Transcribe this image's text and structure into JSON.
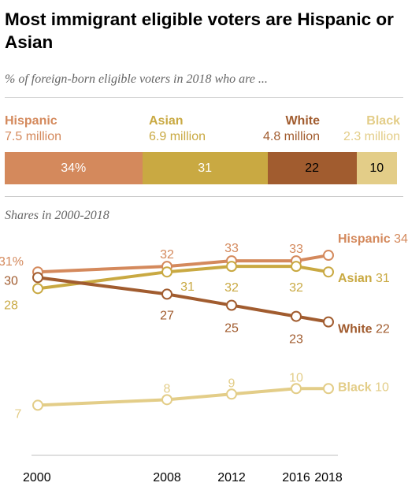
{
  "title": "Most immigrant eligible voters are Hispanic or Asian",
  "subtitle": "% of foreign-born eligible voters in 2018 who are ...",
  "bar_groups": [
    {
      "name": "Hispanic",
      "value_label": "7.5 million",
      "share": 34,
      "share_label": "34%",
      "color": "#d4895c",
      "text_color": "#ffffff",
      "label_color": "#d4895c"
    },
    {
      "name": "Asian",
      "value_label": "6.9 million",
      "share": 31,
      "share_label": "31",
      "color": "#c9a942",
      "text_color": "#ffffff",
      "label_color": "#c9a942"
    },
    {
      "name": "White",
      "value_label": "4.8 million",
      "share": 22,
      "share_label": "22",
      "color": "#a15c2f",
      "text_color": "#000000",
      "label_color": "#a15c2f"
    },
    {
      "name": "Black",
      "value_label": "2.3 million",
      "share": 10,
      "share_label": "10",
      "color": "#e3cd88",
      "text_color": "#000000",
      "label_color": "#e3cd88"
    }
  ],
  "shares_heading": "Shares in 2000-2018",
  "chart_data": {
    "type": "line",
    "x": [
      2000,
      2008,
      2012,
      2016,
      2018
    ],
    "x_tick_labels": [
      "2000",
      "2008",
      "2012",
      "2016",
      "2018"
    ],
    "xlim": [
      2000,
      2018
    ],
    "ylim": [
      5,
      35
    ],
    "grid": false,
    "series": [
      {
        "name": "Hispanic",
        "color": "#d4895c",
        "values": [
          31,
          32,
          33,
          33,
          34
        ],
        "point_labels": [
          "31%",
          "32",
          "33",
          "33",
          ""
        ],
        "end_label": "34"
      },
      {
        "name": "Asian",
        "color": "#c9a942",
        "values": [
          28,
          31,
          32,
          32,
          31
        ],
        "point_labels": [
          "28",
          "31",
          "32",
          "32",
          ""
        ],
        "end_label": "31"
      },
      {
        "name": "White",
        "color": "#a15c2f",
        "values": [
          30,
          27,
          25,
          23,
          22
        ],
        "point_labels": [
          "30",
          "27",
          "25",
          "23",
          ""
        ],
        "end_label": "22"
      },
      {
        "name": "Black",
        "color": "#e3cd88",
        "values": [
          7,
          8,
          9,
          10,
          10
        ],
        "point_labels": [
          "7",
          "8",
          "9",
          "10",
          ""
        ],
        "end_label": "10"
      }
    ]
  }
}
